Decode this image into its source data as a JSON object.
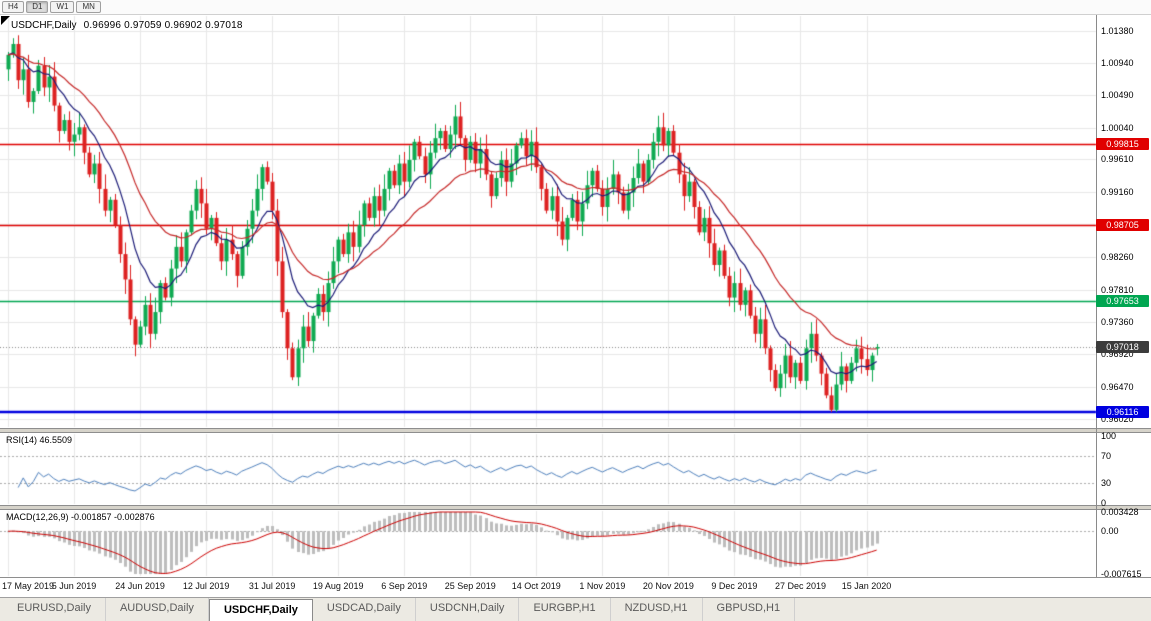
{
  "toolbar": {
    "timeframes": [
      {
        "label": "H4",
        "active": false
      },
      {
        "label": "D1",
        "active": true
      },
      {
        "label": "W1",
        "active": false
      },
      {
        "label": "MN",
        "active": false
      }
    ]
  },
  "chart": {
    "symbol_title": "USDCHF,Daily",
    "ohlc_text": "0.96996 0.97059 0.96902 0.97018"
  },
  "price_axis": {
    "ticks": [
      "1.01380",
      "1.00940",
      "1.00490",
      "1.00040",
      "0.99610",
      "0.99160",
      "0.98710",
      "0.98260",
      "0.97810",
      "0.97360",
      "0.96920",
      "0.96470",
      "0.96020"
    ]
  },
  "levels": [
    {
      "price": 0.99815,
      "label": "0.99815",
      "line_color": "#e00000",
      "badge_color": "#e00000",
      "line_width": 1.4,
      "line_style": "solid"
    },
    {
      "price": 0.98705,
      "label": "0.98705",
      "line_color": "#e00000",
      "badge_color": "#e00000",
      "line_width": 1.4,
      "line_style": "solid"
    },
    {
      "price": 0.97653,
      "label": "0.97653",
      "line_color": "#00a651",
      "badge_color": "#00a651",
      "line_width": 1.4,
      "line_style": "solid"
    },
    {
      "price": 0.97018,
      "label": "0.97018",
      "line_color": "#8a8a8a",
      "badge_color": "#3c3c3c",
      "line_width": 1,
      "line_style": "dotted"
    },
    {
      "price": 0.96116,
      "label": "0.96116",
      "line_color": "#0000e0",
      "badge_color": "#0000e0",
      "line_width": 2.6,
      "line_style": "solid"
    }
  ],
  "indicators": {
    "rsi": {
      "label": "RSI(14) 46.5509",
      "ticks": [
        "100",
        "70",
        "30",
        "0"
      ],
      "guide_levels": [
        70,
        30
      ],
      "line_color": "#4f81bd"
    },
    "macd": {
      "label": "MACD(12,26,9) -0.001857 -0.002876",
      "ticks": [
        "0.003428",
        "0.00",
        "-0.007615"
      ],
      "axis_max": 0.003428,
      "axis_min": -0.007615,
      "histogram_color": "#bdbdbd",
      "signal_color": "#cc0000"
    }
  },
  "time_axis": {
    "dates": [
      "17 May 2019",
      "5 Jun 2019",
      "24 Jun 2019",
      "12 Jul 2019",
      "31 Jul 2019",
      "19 Aug 2019",
      "6 Sep 2019",
      "25 Sep 2019",
      "14 Oct 2019",
      "1 Nov 2019",
      "20 Nov 2019",
      "9 Dec 2019",
      "27 Dec 2019",
      "15 Jan 2020"
    ],
    "bars_per_label": 13
  },
  "tabs": [
    {
      "label": "EURUSD,Daily",
      "active": false
    },
    {
      "label": "AUDUSD,Daily",
      "active": false
    },
    {
      "label": "USDCHF,Daily",
      "active": true
    },
    {
      "label": "USDCAD,Daily",
      "active": false
    },
    {
      "label": "USDCNH,Daily",
      "active": false
    },
    {
      "label": "EURGBP,H1",
      "active": false
    },
    {
      "label": "NZDUSD,H1",
      "active": false
    },
    {
      "label": "GBPUSD,H1",
      "active": false
    }
  ],
  "chart_data": {
    "type": "candlestick",
    "symbol": "USDCHF",
    "timeframe": "Daily",
    "title": "USDCHF,Daily",
    "y_range": {
      "min": 0.959,
      "max": 1.016
    },
    "up_color": "#0faa52",
    "down_color": "#dd2222",
    "first_open": 1.0085,
    "last_bar": {
      "open": 0.96996,
      "high": 0.97059,
      "low": 0.96902,
      "close": 0.97018
    },
    "closes": [
      1.0105,
      1.012,
      1.007,
      1.0085,
      1.004,
      1.0055,
      1.009,
      1.006,
      1.0075,
      1.0035,
      1.0,
      1.0015,
      0.9985,
      0.9995,
      1.0005,
      0.997,
      0.994,
      0.9955,
      0.992,
      0.989,
      0.9905,
      0.987,
      0.983,
      0.9795,
      0.974,
      0.9705,
      0.973,
      0.976,
      0.972,
      0.975,
      0.979,
      0.977,
      0.981,
      0.984,
      0.982,
      0.986,
      0.989,
      0.992,
      0.99,
      0.9865,
      0.988,
      0.9845,
      0.982,
      0.985,
      0.983,
      0.98,
      0.984,
      0.9865,
      0.989,
      0.992,
      0.995,
      0.993,
      0.989,
      0.982,
      0.975,
      0.97,
      0.966,
      0.97,
      0.973,
      0.971,
      0.9745,
      0.9775,
      0.975,
      0.979,
      0.982,
      0.985,
      0.983,
      0.986,
      0.984,
      0.987,
      0.99,
      0.988,
      0.991,
      0.989,
      0.992,
      0.9945,
      0.9925,
      0.9955,
      0.993,
      0.996,
      0.9985,
      0.9965,
      0.994,
      0.997,
      0.999,
      1.0,
      0.9975,
      0.9995,
      1.002,
      0.999,
      0.996,
      0.9985,
      0.9955,
      0.9975,
      0.994,
      0.991,
      0.9935,
      0.996,
      0.993,
      0.9955,
      0.998,
      0.999,
      0.9965,
      0.9985,
      0.995,
      0.992,
      0.989,
      0.991,
      0.9875,
      0.985,
      0.988,
      0.9905,
      0.9875,
      0.99,
      0.9925,
      0.9945,
      0.992,
      0.9895,
      0.992,
      0.994,
      0.9915,
      0.989,
      0.9915,
      0.9935,
      0.9955,
      0.993,
      0.996,
      0.9985,
      1.0005,
      0.998,
      1.0,
      0.997,
      0.994,
      0.991,
      0.993,
      0.9895,
      0.986,
      0.988,
      0.9845,
      0.9815,
      0.9835,
      0.98,
      0.977,
      0.979,
      0.976,
      0.978,
      0.9745,
      0.972,
      0.974,
      0.97,
      0.967,
      0.9645,
      0.9665,
      0.969,
      0.966,
      0.968,
      0.9655,
      0.97,
      0.972,
      0.969,
      0.9665,
      0.9635,
      0.9615,
      0.965,
      0.9675,
      0.9655,
      0.968,
      0.97,
      0.9685,
      0.967,
      0.969,
      0.97018
    ],
    "moving_averages": [
      {
        "type": "ema",
        "period": 10,
        "color": "#1c1c78"
      },
      {
        "type": "ema",
        "period": 24,
        "color": "#c62828"
      }
    ],
    "rsi": {
      "period": 14,
      "last_value": 46.5509
    },
    "macd": {
      "fast": 12,
      "slow": 26,
      "signal": 9,
      "last_macd": -0.001857,
      "last_signal": -0.002876
    }
  }
}
